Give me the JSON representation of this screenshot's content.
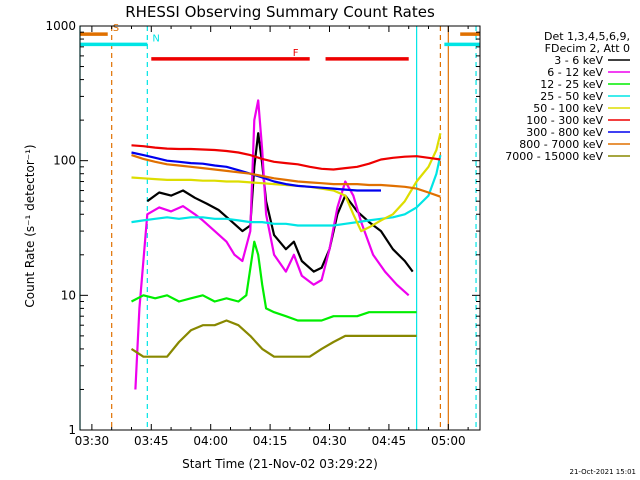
{
  "chart_data": {
    "type": "line",
    "title": "RHESSI Observing Summary Count Rates",
    "xlabel": "Start Time (21-Nov-02 03:29:22)",
    "ylabel": "Count Rate (s⁻¹ detector⁻¹)",
    "yscale": "log",
    "ylim": [
      1,
      1000
    ],
    "xlim": [
      "03:27",
      "05:08"
    ],
    "x_ticks": [
      "03:30",
      "03:45",
      "04:00",
      "04:15",
      "04:30",
      "04:45",
      "05:00"
    ],
    "y_ticks": [
      "1",
      "10",
      "100",
      "1000"
    ],
    "legend_header": [
      "Det 1,3,4,5,6,9,",
      "FDecim 2, Att 0"
    ],
    "legend_position": "right",
    "timestamp": "21-Oct-2021 15:01",
    "flags": [
      {
        "label": "S",
        "color": "#e07000",
        "segments": [
          [
            "03:27",
            "03:34"
          ],
          [
            "05:03",
            "05:08"
          ]
        ],
        "level": 870
      },
      {
        "label": "N",
        "color": "#00e5e5",
        "segments": [
          [
            "03:27",
            "03:44"
          ],
          [
            "04:59",
            "05:08"
          ]
        ],
        "level": 730
      },
      {
        "label": "F",
        "color": "#ee0000",
        "segments": [
          [
            "03:45",
            "04:25"
          ],
          [
            "04:29",
            "04:50"
          ]
        ],
        "level": 570
      }
    ],
    "vlines": [
      {
        "t": "03:27",
        "color": "#00e5e5",
        "style": "solid"
      },
      {
        "t": "03:35",
        "color": "#e07000",
        "style": "dashed"
      },
      {
        "t": "03:44",
        "color": "#00e5e5",
        "style": "dashed"
      },
      {
        "t": "04:52",
        "color": "#00e5e5",
        "style": "solid"
      },
      {
        "t": "04:58",
        "color": "#e07000",
        "style": "dashed"
      },
      {
        "t": "05:00",
        "color": "#e07000",
        "style": "solid"
      },
      {
        "t": "05:07",
        "color": "#00e5e5",
        "style": "dashed"
      }
    ],
    "series": [
      {
        "name": "3 - 6 keV",
        "color": "#000000",
        "points": [
          [
            "03:44",
            50
          ],
          [
            "03:47",
            58
          ],
          [
            "03:50",
            55
          ],
          [
            "03:53",
            60
          ],
          [
            "03:56",
            53
          ],
          [
            "03:59",
            48
          ],
          [
            "04:02",
            43
          ],
          [
            "04:05",
            36
          ],
          [
            "04:08",
            30
          ],
          [
            "04:10",
            33
          ],
          [
            "04:11",
            90
          ],
          [
            "04:12",
            160
          ],
          [
            "04:13",
            95
          ],
          [
            "04:14",
            50
          ],
          [
            "04:16",
            28
          ],
          [
            "04:19",
            22
          ],
          [
            "04:21",
            25
          ],
          [
            "04:23",
            18
          ],
          [
            "04:26",
            15
          ],
          [
            "04:28",
            16
          ],
          [
            "04:30",
            22
          ],
          [
            "04:32",
            40
          ],
          [
            "04:34",
            55
          ],
          [
            "04:37",
            42
          ],
          [
            "04:40",
            35
          ],
          [
            "04:43",
            30
          ],
          [
            "04:46",
            22
          ],
          [
            "04:49",
            18
          ],
          [
            "04:51",
            15
          ]
        ]
      },
      {
        "name": "6 - 12 keV",
        "color": "#ee00ee",
        "points": [
          [
            "03:41",
            2
          ],
          [
            "03:42",
            8
          ],
          [
            "03:44",
            40
          ],
          [
            "03:47",
            45
          ],
          [
            "03:50",
            42
          ],
          [
            "03:53",
            46
          ],
          [
            "03:56",
            40
          ],
          [
            "03:58",
            36
          ],
          [
            "04:01",
            30
          ],
          [
            "04:04",
            25
          ],
          [
            "04:06",
            20
          ],
          [
            "04:08",
            18
          ],
          [
            "04:10",
            30
          ],
          [
            "04:11",
            200
          ],
          [
            "04:12",
            280
          ],
          [
            "04:13",
            120
          ],
          [
            "04:14",
            40
          ],
          [
            "04:16",
            20
          ],
          [
            "04:19",
            15
          ],
          [
            "04:21",
            20
          ],
          [
            "04:23",
            14
          ],
          [
            "04:26",
            12
          ],
          [
            "04:28",
            13
          ],
          [
            "04:30",
            22
          ],
          [
            "04:32",
            45
          ],
          [
            "04:34",
            70
          ],
          [
            "04:36",
            55
          ],
          [
            "04:38",
            35
          ],
          [
            "04:41",
            20
          ],
          [
            "04:44",
            15
          ],
          [
            "04:47",
            12
          ],
          [
            "04:50",
            10
          ]
        ]
      },
      {
        "name": "12 - 25 keV",
        "color": "#00ee00",
        "points": [
          [
            "03:40",
            9
          ],
          [
            "03:43",
            10
          ],
          [
            "03:46",
            9.5
          ],
          [
            "03:49",
            10
          ],
          [
            "03:52",
            9
          ],
          [
            "03:55",
            9.5
          ],
          [
            "03:58",
            10
          ],
          [
            "04:01",
            9
          ],
          [
            "04:04",
            9.5
          ],
          [
            "04:07",
            9
          ],
          [
            "04:09",
            10
          ],
          [
            "04:11",
            25
          ],
          [
            "04:12",
            20
          ],
          [
            "04:13",
            12
          ],
          [
            "04:14",
            8
          ],
          [
            "04:16",
            7.5
          ],
          [
            "04:19",
            7
          ],
          [
            "04:22",
            6.5
          ],
          [
            "04:25",
            6.5
          ],
          [
            "04:28",
            6.5
          ],
          [
            "04:31",
            7
          ],
          [
            "04:34",
            7
          ],
          [
            "04:37",
            7
          ],
          [
            "04:40",
            7.5
          ],
          [
            "04:43",
            7.5
          ],
          [
            "04:46",
            7.5
          ],
          [
            "04:49",
            7.5
          ],
          [
            "04:52",
            7.5
          ]
        ]
      },
      {
        "name": "25 - 50 keV",
        "color": "#00e5e5",
        "points": [
          [
            "03:40",
            35
          ],
          [
            "03:43",
            36
          ],
          [
            "03:46",
            37
          ],
          [
            "03:49",
            38
          ],
          [
            "03:52",
            37
          ],
          [
            "03:55",
            38
          ],
          [
            "03:58",
            38
          ],
          [
            "04:01",
            37
          ],
          [
            "04:04",
            37
          ],
          [
            "04:07",
            36
          ],
          [
            "04:10",
            35
          ],
          [
            "04:13",
            35
          ],
          [
            "04:16",
            34
          ],
          [
            "04:19",
            34
          ],
          [
            "04:22",
            33
          ],
          [
            "04:25",
            33
          ],
          [
            "04:28",
            33
          ],
          [
            "04:31",
            33
          ],
          [
            "04:34",
            34
          ],
          [
            "04:37",
            35
          ],
          [
            "04:40",
            36
          ],
          [
            "04:43",
            37
          ],
          [
            "04:46",
            38
          ],
          [
            "04:49",
            40
          ],
          [
            "04:52",
            45
          ],
          [
            "04:55",
            55
          ],
          [
            "04:57",
            80
          ],
          [
            "04:58",
            110
          ]
        ]
      },
      {
        "name": "50 - 100 keV",
        "color": "#dddd00",
        "points": [
          [
            "03:40",
            75
          ],
          [
            "03:43",
            74
          ],
          [
            "03:46",
            73
          ],
          [
            "03:49",
            72
          ],
          [
            "03:52",
            72
          ],
          [
            "03:55",
            72
          ],
          [
            "03:58",
            71
          ],
          [
            "04:01",
            71
          ],
          [
            "04:04",
            70
          ],
          [
            "04:07",
            70
          ],
          [
            "04:10",
            69
          ],
          [
            "04:13",
            68
          ],
          [
            "04:16",
            67
          ],
          [
            "04:19",
            66
          ],
          [
            "04:22",
            65
          ],
          [
            "04:25",
            64
          ],
          [
            "04:28",
            62
          ],
          [
            "04:31",
            60
          ],
          [
            "04:34",
            55
          ],
          [
            "04:36",
            40
          ],
          [
            "04:38",
            30
          ],
          [
            "04:40",
            32
          ],
          [
            "04:43",
            36
          ],
          [
            "04:46",
            40
          ],
          [
            "04:49",
            50
          ],
          [
            "04:52",
            70
          ],
          [
            "04:55",
            90
          ],
          [
            "04:57",
            120
          ],
          [
            "04:58",
            160
          ]
        ]
      },
      {
        "name": "100 - 300 keV",
        "color": "#ee0000",
        "points": [
          [
            "03:40",
            130
          ],
          [
            "03:43",
            128
          ],
          [
            "03:46",
            125
          ],
          [
            "03:49",
            123
          ],
          [
            "03:52",
            122
          ],
          [
            "03:55",
            122
          ],
          [
            "03:58",
            121
          ],
          [
            "04:01",
            120
          ],
          [
            "04:04",
            118
          ],
          [
            "04:07",
            115
          ],
          [
            "04:10",
            110
          ],
          [
            "04:13",
            103
          ],
          [
            "04:16",
            98
          ],
          [
            "04:19",
            96
          ],
          [
            "04:22",
            94
          ],
          [
            "04:25",
            90
          ],
          [
            "04:28",
            87
          ],
          [
            "04:31",
            86
          ],
          [
            "04:34",
            88
          ],
          [
            "04:37",
            90
          ],
          [
            "04:40",
            95
          ],
          [
            "04:43",
            102
          ],
          [
            "04:46",
            105
          ],
          [
            "04:49",
            107
          ],
          [
            "04:52",
            108
          ],
          [
            "04:55",
            105
          ],
          [
            "04:58",
            102
          ]
        ]
      },
      {
        "name": "300 - 800 keV",
        "color": "#0000ee",
        "points": [
          [
            "03:40",
            115
          ],
          [
            "03:43",
            110
          ],
          [
            "03:46",
            105
          ],
          [
            "03:49",
            100
          ],
          [
            "03:52",
            98
          ],
          [
            "03:55",
            96
          ],
          [
            "03:58",
            95
          ],
          [
            "04:01",
            92
          ],
          [
            "04:04",
            90
          ],
          [
            "04:07",
            85
          ],
          [
            "04:10",
            80
          ],
          [
            "04:13",
            75
          ],
          [
            "04:16",
            70
          ],
          [
            "04:19",
            67
          ],
          [
            "04:22",
            65
          ],
          [
            "04:25",
            64
          ],
          [
            "04:28",
            63
          ],
          [
            "04:31",
            62
          ],
          [
            "04:34",
            61
          ],
          [
            "04:37",
            60
          ],
          [
            "04:40",
            60
          ],
          [
            "04:43",
            60
          ]
        ]
      },
      {
        "name": "800 - 7000 keV",
        "color": "#e07000",
        "points": [
          [
            "03:40",
            110
          ],
          [
            "03:43",
            103
          ],
          [
            "03:46",
            98
          ],
          [
            "03:49",
            94
          ],
          [
            "03:52",
            92
          ],
          [
            "03:55",
            90
          ],
          [
            "03:58",
            88
          ],
          [
            "04:01",
            86
          ],
          [
            "04:04",
            84
          ],
          [
            "04:07",
            82
          ],
          [
            "04:10",
            80
          ],
          [
            "04:13",
            77
          ],
          [
            "04:16",
            74
          ],
          [
            "04:19",
            72
          ],
          [
            "04:22",
            70
          ],
          [
            "04:25",
            69
          ],
          [
            "04:28",
            68
          ],
          [
            "04:31",
            67
          ],
          [
            "04:34",
            67
          ],
          [
            "04:37",
            67
          ],
          [
            "04:40",
            66
          ],
          [
            "04:43",
            66
          ],
          [
            "04:46",
            65
          ],
          [
            "04:49",
            64
          ],
          [
            "04:52",
            62
          ],
          [
            "04:55",
            58
          ],
          [
            "04:58",
            54
          ]
        ]
      },
      {
        "name": "7000 - 15000 keV",
        "color": "#888800",
        "points": [
          [
            "03:40",
            4
          ],
          [
            "03:43",
            3.5
          ],
          [
            "03:46",
            3.5
          ],
          [
            "03:49",
            3.5
          ],
          [
            "03:52",
            4.5
          ],
          [
            "03:55",
            5.5
          ],
          [
            "03:58",
            6
          ],
          [
            "04:01",
            6
          ],
          [
            "04:04",
            6.5
          ],
          [
            "04:07",
            6
          ],
          [
            "04:10",
            5
          ],
          [
            "04:13",
            4
          ],
          [
            "04:16",
            3.5
          ],
          [
            "04:19",
            3.5
          ],
          [
            "04:22",
            3.5
          ],
          [
            "04:25",
            3.5
          ],
          [
            "04:28",
            4
          ],
          [
            "04:31",
            4.5
          ],
          [
            "04:34",
            5
          ],
          [
            "04:37",
            5
          ],
          [
            "04:40",
            5
          ],
          [
            "04:43",
            5
          ],
          [
            "04:46",
            5
          ],
          [
            "04:49",
            5
          ],
          [
            "04:52",
            5
          ]
        ]
      }
    ]
  }
}
